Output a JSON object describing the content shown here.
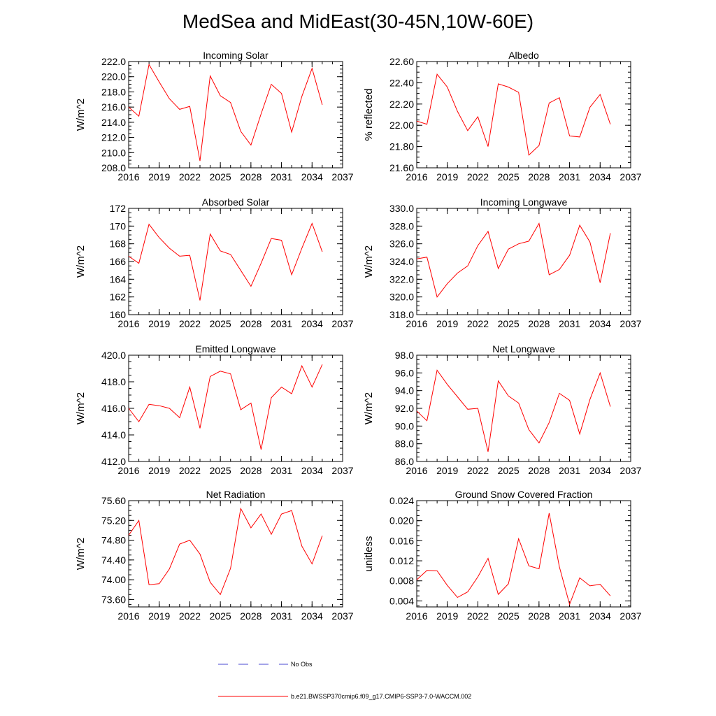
{
  "figure": {
    "title": "MedSea and MidEast(30-45N,10W-60E)"
  },
  "legend": {
    "obs_label": "No Obs",
    "obs_color": "#4a4ad0",
    "model_label": "b.e21.BWSSP370cmip6.f09_g17.CMIP6-SSP3-7.0-WACCM.002",
    "model_color": "#ff0000"
  },
  "chart_data": [
    {
      "type": "line",
      "title": "Incoming Solar",
      "ylabel": "W/m^2",
      "xlim": [
        2016,
        2037
      ],
      "xticks": [
        2016,
        2019,
        2022,
        2025,
        2028,
        2031,
        2034,
        2037
      ],
      "ylim": [
        208,
        222
      ],
      "yticks": [
        "208.0",
        "210.0",
        "212.0",
        "214.0",
        "216.0",
        "218.0",
        "220.0",
        "222.0"
      ],
      "x": [
        2016,
        2017,
        2018,
        2019,
        2020,
        2021,
        2022,
        2023,
        2024,
        2025,
        2026,
        2027,
        2028,
        2029,
        2030,
        2031,
        2032,
        2033,
        2034,
        2035
      ],
      "series": [
        {
          "name": "b.e21.BWSSP370cmip6.f09_g17.CMIP6-SSP3-7.0-WACCM.002",
          "values": [
            216.0,
            214.8,
            221.6,
            219.3,
            217.1,
            215.7,
            216.1,
            208.9,
            220.1,
            217.5,
            216.6,
            212.8,
            211.0,
            215.1,
            219.0,
            217.8,
            212.7,
            217.4,
            221.1,
            216.3
          ]
        }
      ]
    },
    {
      "type": "line",
      "title": "Albedo",
      "ylabel": "% reflected",
      "xlim": [
        2016,
        2037
      ],
      "xticks": [
        2016,
        2019,
        2022,
        2025,
        2028,
        2031,
        2034,
        2037
      ],
      "ylim": [
        21.6,
        22.6
      ],
      "yticks": [
        "21.60",
        "21.80",
        "22.00",
        "22.20",
        "22.40",
        "22.60"
      ],
      "x": [
        2016,
        2017,
        2018,
        2019,
        2020,
        2021,
        2022,
        2023,
        2024,
        2025,
        2026,
        2027,
        2028,
        2029,
        2030,
        2031,
        2032,
        2033,
        2034,
        2035
      ],
      "series": [
        {
          "name": "b.e21.BWSSP370cmip6.f09_g17.CMIP6-SSP3-7.0-WACCM.002",
          "values": [
            22.04,
            22.01,
            22.48,
            22.36,
            22.13,
            21.95,
            22.08,
            21.8,
            22.39,
            22.36,
            22.31,
            21.72,
            21.81,
            22.21,
            22.26,
            21.9,
            21.89,
            22.17,
            22.29,
            22.01
          ]
        }
      ]
    },
    {
      "type": "line",
      "title": "Absorbed Solar",
      "ylabel": "W/m^2",
      "xlim": [
        2016,
        2037
      ],
      "xticks": [
        2016,
        2019,
        2022,
        2025,
        2028,
        2031,
        2034,
        2037
      ],
      "ylim": [
        160,
        172
      ],
      "yticks": [
        "160",
        "162",
        "164",
        "166",
        "168",
        "170",
        "172"
      ],
      "x": [
        2016,
        2017,
        2018,
        2019,
        2020,
        2021,
        2022,
        2023,
        2024,
        2025,
        2026,
        2027,
        2028,
        2029,
        2030,
        2031,
        2032,
        2033,
        2034,
        2035
      ],
      "series": [
        {
          "name": "b.e21.BWSSP370cmip6.f09_g17.CMIP6-SSP3-7.0-WACCM.002",
          "values": [
            166.6,
            165.8,
            170.2,
            168.7,
            167.5,
            166.6,
            166.7,
            161.6,
            169.1,
            167.2,
            166.8,
            165.0,
            163.2,
            165.8,
            168.6,
            168.4,
            164.5,
            167.5,
            170.3,
            167.1
          ]
        }
      ]
    },
    {
      "type": "line",
      "title": "Incoming Longwave",
      "ylabel": "W/m^2",
      "xlim": [
        2016,
        2037
      ],
      "xticks": [
        2016,
        2019,
        2022,
        2025,
        2028,
        2031,
        2034,
        2037
      ],
      "ylim": [
        318,
        330
      ],
      "yticks": [
        "318.0",
        "320.0",
        "322.0",
        "324.0",
        "326.0",
        "328.0",
        "330.0"
      ],
      "x": [
        2016,
        2017,
        2018,
        2019,
        2020,
        2021,
        2022,
        2023,
        2024,
        2025,
        2026,
        2027,
        2028,
        2029,
        2030,
        2031,
        2032,
        2033,
        2034,
        2035
      ],
      "series": [
        {
          "name": "b.e21.BWSSP370cmip6.f09_g17.CMIP6-SSP3-7.0-WACCM.002",
          "values": [
            324.3,
            324.5,
            320.0,
            321.5,
            322.7,
            323.5,
            325.8,
            327.4,
            323.2,
            325.4,
            326.0,
            326.3,
            328.3,
            322.5,
            323.1,
            324.7,
            328.1,
            326.2,
            321.6,
            327.2
          ]
        }
      ]
    },
    {
      "type": "line",
      "title": "Emitted Longwave",
      "ylabel": "W/m^2",
      "xlim": [
        2016,
        2037
      ],
      "xticks": [
        2016,
        2019,
        2022,
        2025,
        2028,
        2031,
        2034,
        2037
      ],
      "ylim": [
        412,
        420
      ],
      "yticks": [
        "412.0",
        "414.0",
        "416.0",
        "418.0",
        "420.0"
      ],
      "x": [
        2016,
        2017,
        2018,
        2019,
        2020,
        2021,
        2022,
        2023,
        2024,
        2025,
        2026,
        2027,
        2028,
        2029,
        2030,
        2031,
        2032,
        2033,
        2034,
        2035
      ],
      "series": [
        {
          "name": "b.e21.BWSSP370cmip6.f09_g17.CMIP6-SSP3-7.0-WACCM.002",
          "values": [
            416.0,
            415.0,
            416.3,
            416.2,
            416.0,
            415.3,
            417.6,
            414.5,
            418.4,
            418.8,
            418.6,
            415.9,
            416.4,
            412.9,
            416.8,
            417.6,
            417.1,
            419.2,
            417.6,
            419.3
          ]
        }
      ]
    },
    {
      "type": "line",
      "title": "Net Longwave",
      "ylabel": "W/m^2",
      "xlim": [
        2016,
        2037
      ],
      "xticks": [
        2016,
        2019,
        2022,
        2025,
        2028,
        2031,
        2034,
        2037
      ],
      "ylim": [
        86,
        98
      ],
      "yticks": [
        "86.0",
        "88.0",
        "90.0",
        "92.0",
        "94.0",
        "96.0",
        "98.0"
      ],
      "x": [
        2016,
        2017,
        2018,
        2019,
        2020,
        2021,
        2022,
        2023,
        2024,
        2025,
        2026,
        2027,
        2028,
        2029,
        2030,
        2031,
        2032,
        2033,
        2034,
        2035
      ],
      "series": [
        {
          "name": "b.e21.BWSSP370cmip6.f09_g17.CMIP6-SSP3-7.0-WACCM.002",
          "values": [
            91.7,
            90.6,
            96.3,
            94.7,
            93.3,
            91.9,
            92.0,
            87.1,
            95.1,
            93.4,
            92.6,
            89.6,
            88.1,
            90.4,
            93.7,
            92.9,
            89.1,
            93.0,
            96.0,
            92.2
          ]
        }
      ]
    },
    {
      "type": "line",
      "title": "Net Radiation",
      "ylabel": "W/m^2",
      "xlim": [
        2016,
        2037
      ],
      "xticks": [
        2016,
        2019,
        2022,
        2025,
        2028,
        2031,
        2034,
        2037
      ],
      "ylim": [
        73.45,
        75.6
      ],
      "yticks": [
        "73.60",
        "74.00",
        "74.40",
        "74.80",
        "75.20",
        "75.60"
      ],
      "x": [
        2016,
        2017,
        2018,
        2019,
        2020,
        2021,
        2022,
        2023,
        2024,
        2025,
        2026,
        2027,
        2028,
        2029,
        2030,
        2031,
        2032,
        2033,
        2034,
        2035
      ],
      "series": [
        {
          "name": "b.e21.BWSSP370cmip6.f09_g17.CMIP6-SSP3-7.0-WACCM.002",
          "values": [
            74.9,
            75.2,
            73.9,
            73.92,
            74.22,
            74.72,
            74.8,
            74.52,
            73.95,
            73.7,
            74.23,
            75.44,
            75.05,
            75.33,
            74.92,
            75.33,
            75.4,
            74.68,
            74.32,
            74.89
          ]
        }
      ]
    },
    {
      "type": "line",
      "title": "Ground Snow Covered Fraction",
      "ylabel": "unitless",
      "xlim": [
        2016,
        2037
      ],
      "xticks": [
        2016,
        2019,
        2022,
        2025,
        2028,
        2031,
        2034,
        2037
      ],
      "ylim": [
        0.0028,
        0.024
      ],
      "yticks": [
        "0.004",
        "0.008",
        "0.012",
        "0.016",
        "0.020",
        "0.024"
      ],
      "x": [
        2016,
        2017,
        2018,
        2019,
        2020,
        2021,
        2022,
        2023,
        2024,
        2025,
        2026,
        2027,
        2028,
        2029,
        2030,
        2031,
        2032,
        2033,
        2034,
        2035
      ],
      "series": [
        {
          "name": "b.e21.BWSSP370cmip6.f09_g17.CMIP6-SSP3-7.0-WACCM.002",
          "values": [
            0.0082,
            0.0101,
            0.01,
            0.0071,
            0.0047,
            0.0058,
            0.0088,
            0.0125,
            0.0053,
            0.0074,
            0.0164,
            0.011,
            0.0104,
            0.0215,
            0.0108,
            0.0033,
            0.0086,
            0.007,
            0.0073,
            0.005
          ]
        }
      ]
    }
  ]
}
